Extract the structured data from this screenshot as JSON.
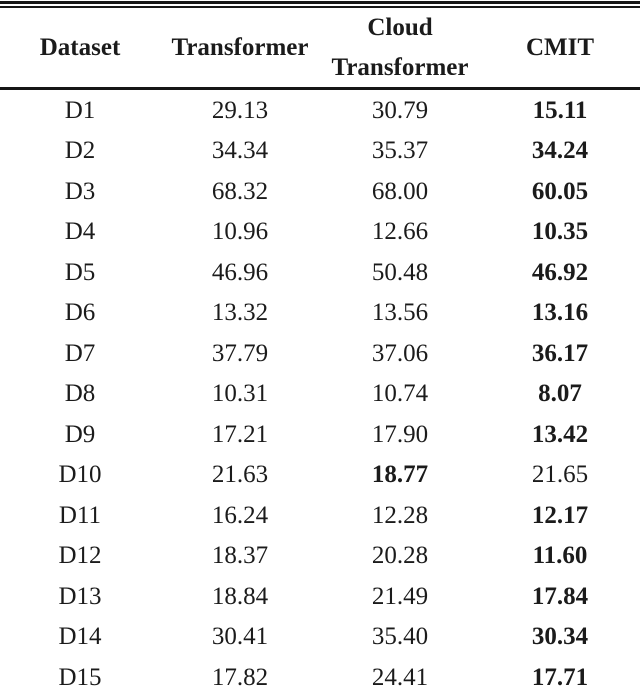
{
  "table": {
    "header": {
      "dataset": "Dataset",
      "transformer": "Transformer",
      "cloud_transformer_line1": "Cloud",
      "cloud_transformer_line2": "Transformer",
      "cmit": "CMIT"
    },
    "columns": [
      "Dataset",
      "Transformer",
      "Cloud Transformer",
      "CMIT"
    ],
    "rows": [
      {
        "dataset": "D1",
        "transformer": "29.13",
        "cloud_transformer": "30.79",
        "cmit": "15.11",
        "bold": "cmit"
      },
      {
        "dataset": "D2",
        "transformer": "34.34",
        "cloud_transformer": "35.37",
        "cmit": "34.24",
        "bold": "cmit"
      },
      {
        "dataset": "D3",
        "transformer": "68.32",
        "cloud_transformer": "68.00",
        "cmit": "60.05",
        "bold": "cmit"
      },
      {
        "dataset": "D4",
        "transformer": "10.96",
        "cloud_transformer": "12.66",
        "cmit": "10.35",
        "bold": "cmit"
      },
      {
        "dataset": "D5",
        "transformer": "46.96",
        "cloud_transformer": "50.48",
        "cmit": "46.92",
        "bold": "cmit"
      },
      {
        "dataset": "D6",
        "transformer": "13.32",
        "cloud_transformer": "13.56",
        "cmit": "13.16",
        "bold": "cmit"
      },
      {
        "dataset": "D7",
        "transformer": "37.79",
        "cloud_transformer": "37.06",
        "cmit": "36.17",
        "bold": "cmit"
      },
      {
        "dataset": "D8",
        "transformer": "10.31",
        "cloud_transformer": "10.74",
        "cmit": "8.07",
        "bold": "cmit"
      },
      {
        "dataset": "D9",
        "transformer": "17.21",
        "cloud_transformer": "17.90",
        "cmit": "13.42",
        "bold": "cmit"
      },
      {
        "dataset": "D10",
        "transformer": "21.63",
        "cloud_transformer": "18.77",
        "cmit": "21.65",
        "bold": "cloud_transformer"
      },
      {
        "dataset": "D11",
        "transformer": "16.24",
        "cloud_transformer": "12.28",
        "cmit": "12.17",
        "bold": "cmit"
      },
      {
        "dataset": "D12",
        "transformer": "18.37",
        "cloud_transformer": "20.28",
        "cmit": "11.60",
        "bold": "cmit"
      },
      {
        "dataset": "D13",
        "transformer": "18.84",
        "cloud_transformer": "21.49",
        "cmit": "17.84",
        "bold": "cmit"
      },
      {
        "dataset": "D14",
        "transformer": "30.41",
        "cloud_transformer": "35.40",
        "cmit": "30.34",
        "bold": "cmit"
      },
      {
        "dataset": "D15",
        "transformer": "17.82",
        "cloud_transformer": "24.41",
        "cmit": "17.71",
        "bold": "cmit"
      }
    ],
    "text_color": "#1b1b1b",
    "rule_color": "#161616"
  }
}
